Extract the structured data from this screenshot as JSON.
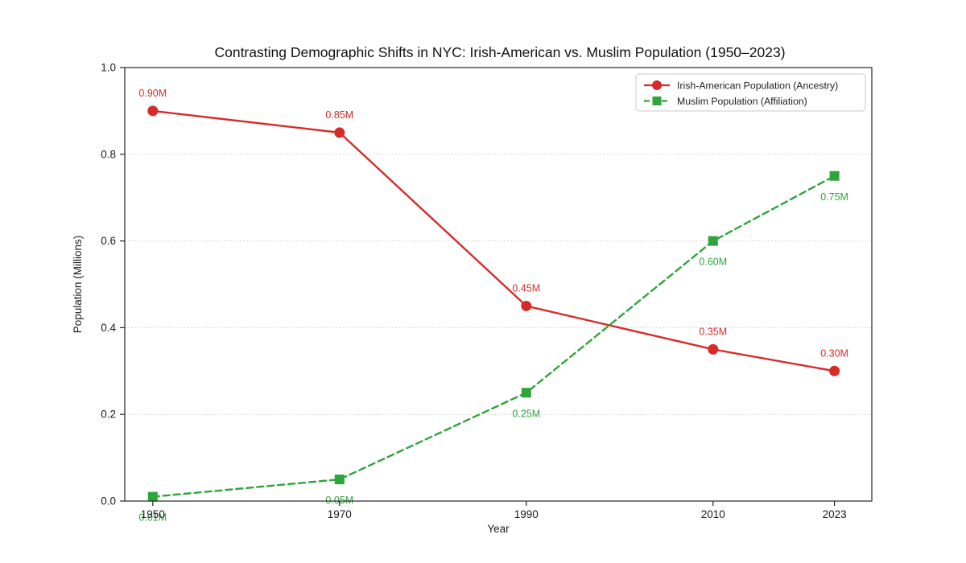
{
  "page": {
    "background_color": "#ffffff"
  },
  "chart_data": {
    "type": "line",
    "title": "Contrasting Demographic Shifts in NYC: Irish-American vs. Muslim Population (1950–2023)",
    "xlabel": "Year",
    "ylabel": "Population (Millions)",
    "x": [
      1950,
      1970,
      1990,
      2010,
      2023
    ],
    "xtick_labels": [
      "1950",
      "1970",
      "1990",
      "2010",
      "2023"
    ],
    "yticks": [
      0.0,
      0.2,
      0.4,
      0.6,
      0.8,
      1.0
    ],
    "ytick_labels": [
      "0.0",
      "0.2",
      "0.4",
      "0.6",
      "0.8",
      "1.0"
    ],
    "xlim": [
      1947,
      2027
    ],
    "ylim": [
      0.0,
      1.0
    ],
    "grid": {
      "horizontal": true,
      "vertical": false,
      "style": "dotted",
      "color": "#cccccc",
      "levels": [
        0.2,
        0.4,
        0.6,
        0.8
      ]
    },
    "axis": {
      "spine_color": "#262626",
      "tick_label_color": "#1c1c1c",
      "title_color": "#111111"
    },
    "legend": {
      "position": "upper right",
      "background": "#ffffff",
      "border_color": "#c8c8c8"
    },
    "series": [
      {
        "name": "Irish-American Population (Ancestry)",
        "color": "#d62b28",
        "line_style": "solid",
        "marker": "circle",
        "values": [
          0.9,
          0.85,
          0.45,
          0.35,
          0.3
        ],
        "point_labels": [
          "0.90M",
          "0.85M",
          "0.45M",
          "0.35M",
          "0.30M"
        ],
        "label_position": "above"
      },
      {
        "name": "Muslim Population (Affiliation)",
        "color": "#2ea43a",
        "line_style": "dashed",
        "marker": "square",
        "values": [
          0.01,
          0.05,
          0.25,
          0.6,
          0.75
        ],
        "point_labels": [
          "0.01M",
          "0.05M",
          "0.25M",
          "0.60M",
          "0.75M"
        ],
        "label_position": "below"
      }
    ]
  }
}
